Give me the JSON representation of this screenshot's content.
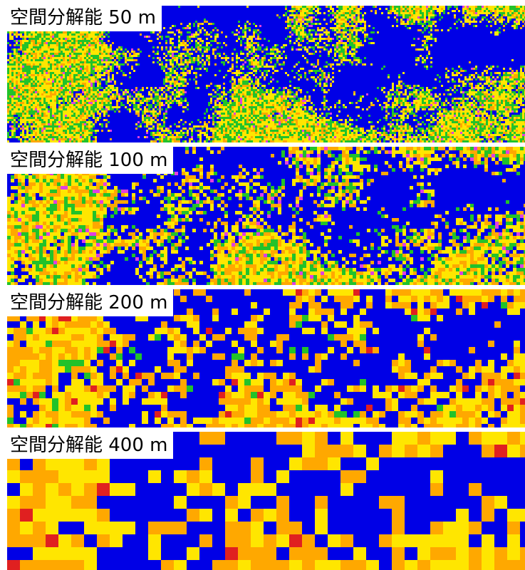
{
  "panels": [
    {
      "label": "空間分解能 50 m"
    },
    {
      "label": "空間分解能 100 m"
    },
    {
      "label": "空間分解能 200 m"
    },
    {
      "label": "空間分解能 400 m"
    }
  ]
}
